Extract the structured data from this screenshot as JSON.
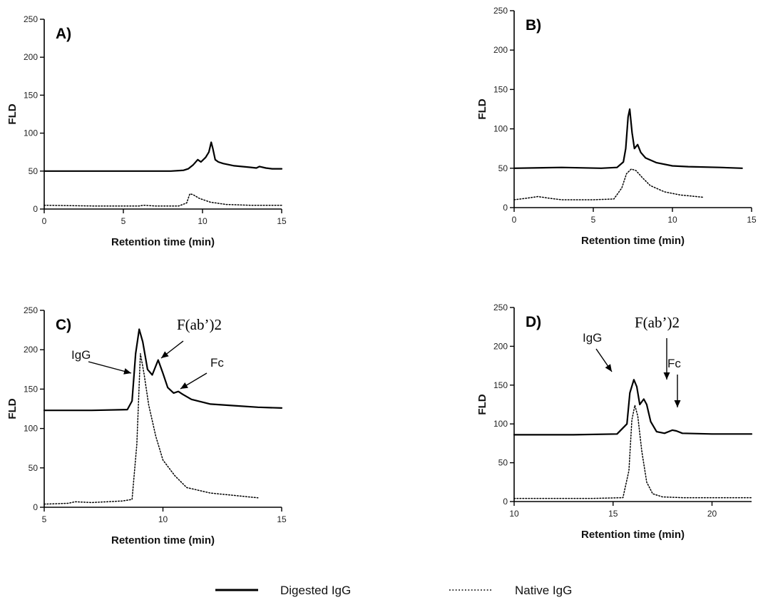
{
  "chart_data": [
    {
      "type": "line",
      "panel_label": "A)",
      "xlabel": "Retention time (min)",
      "ylabel": "FLD",
      "xlim": [
        0,
        15
      ],
      "ylim": [
        0,
        250
      ],
      "xticks": [
        0,
        5,
        10,
        15
      ],
      "yticks": [
        0,
        50,
        100,
        150,
        200,
        250
      ],
      "annotations": [],
      "series": [
        {
          "name": "Digested IgG",
          "style": "solid",
          "x": [
            0,
            3,
            6,
            8,
            8.8,
            9.1,
            9.4,
            9.7,
            9.9,
            10.2,
            10.4,
            10.55,
            10.65,
            10.8,
            11,
            11.3,
            12,
            13,
            13.4,
            13.6,
            14,
            14.4,
            15
          ],
          "y": [
            50,
            50,
            50,
            50,
            51,
            53,
            58,
            65,
            62,
            68,
            75,
            88,
            80,
            65,
            62,
            60,
            57,
            55,
            54,
            56,
            54,
            53,
            53
          ]
        },
        {
          "name": "Native IgG",
          "style": "dotted",
          "x": [
            0,
            3,
            6,
            6.3,
            7,
            8.5,
            9,
            9.2,
            9.4,
            9.8,
            10.5,
            11.5,
            13,
            15
          ],
          "y": [
            5,
            4,
            4,
            5,
            4,
            4,
            8,
            20,
            19,
            14,
            9,
            6,
            5,
            5
          ]
        }
      ]
    },
    {
      "type": "line",
      "panel_label": "B)",
      "xlabel": "Retention time (min)",
      "ylabel": "FLD",
      "xlim": [
        0,
        15
      ],
      "ylim": [
        0,
        250
      ],
      "xticks": [
        0,
        5,
        10,
        15
      ],
      "yticks": [
        0,
        50,
        100,
        150,
        200,
        250
      ],
      "annotations": [],
      "series": [
        {
          "name": "Digested IgG",
          "style": "solid",
          "x": [
            0,
            3,
            5.5,
            6.5,
            6.9,
            7.05,
            7.2,
            7.3,
            7.45,
            7.6,
            7.8,
            8.0,
            8.3,
            9,
            10,
            11,
            13,
            14.4
          ],
          "y": [
            50,
            51,
            50,
            51,
            58,
            75,
            115,
            125,
            95,
            75,
            80,
            70,
            63,
            57,
            53,
            52,
            51,
            50
          ]
        },
        {
          "name": "Native IgG",
          "style": "dotted",
          "x": [
            0,
            0.8,
            1.5,
            2.2,
            3,
            5,
            6.3,
            6.8,
            7.1,
            7.4,
            7.7,
            8.1,
            8.6,
            9.5,
            10.5,
            12
          ],
          "y": [
            10,
            12,
            14,
            12,
            10,
            10,
            11,
            25,
            43,
            49,
            47,
            38,
            28,
            20,
            16,
            13
          ]
        }
      ]
    },
    {
      "type": "line",
      "panel_label": "C)",
      "xlabel": "Retention time (min)",
      "ylabel": "FLD",
      "xlim": [
        5,
        15
      ],
      "ylim": [
        0,
        250
      ],
      "xticks": [
        5,
        10,
        15
      ],
      "yticks": [
        0,
        50,
        100,
        150,
        200,
        250
      ],
      "annotations": [
        "IgG",
        "F(ab’)2",
        "Fc"
      ],
      "series": [
        {
          "name": "Digested IgG",
          "style": "solid",
          "x": [
            5,
            7,
            8.5,
            8.7,
            8.85,
            9.0,
            9.15,
            9.35,
            9.55,
            9.8,
            10.0,
            10.2,
            10.45,
            10.65,
            10.85,
            11.2,
            12,
            13,
            14,
            15
          ],
          "y": [
            123,
            123,
            124,
            135,
            195,
            226,
            210,
            175,
            168,
            187,
            170,
            152,
            145,
            147,
            143,
            137,
            131,
            129,
            127,
            126
          ]
        },
        {
          "name": "Native IgG",
          "style": "dotted",
          "x": [
            5,
            6,
            6.3,
            7,
            8.3,
            8.7,
            8.9,
            9.05,
            9.2,
            9.4,
            9.7,
            10,
            10.5,
            11,
            12,
            13,
            14
          ],
          "y": [
            4,
            5,
            7,
            6,
            8,
            10,
            80,
            195,
            170,
            130,
            90,
            60,
            40,
            25,
            18,
            15,
            12
          ]
        }
      ]
    },
    {
      "type": "line",
      "panel_label": "D)",
      "xlabel": "Retention time (min)",
      "ylabel": "FLD",
      "xlim": [
        10,
        22
      ],
      "ylim": [
        0,
        250
      ],
      "xticks": [
        10,
        15,
        20
      ],
      "yticks": [
        0,
        50,
        100,
        150,
        200,
        250
      ],
      "annotations": [
        "IgG",
        "F(ab’)2",
        "Fc"
      ],
      "series": [
        {
          "name": "Digested IgG",
          "style": "solid",
          "x": [
            10,
            13,
            15.2,
            15.7,
            15.85,
            16.05,
            16.2,
            16.35,
            16.55,
            16.7,
            16.9,
            17.2,
            17.6,
            18,
            18.2,
            18.5,
            20,
            22
          ],
          "y": [
            86,
            86,
            87,
            100,
            140,
            157,
            148,
            125,
            132,
            125,
            103,
            90,
            88,
            92,
            91,
            88,
            87,
            87
          ]
        },
        {
          "name": "Native IgG",
          "style": "dotted",
          "x": [
            10,
            14,
            15.5,
            15.8,
            15.95,
            16.1,
            16.25,
            16.45,
            16.7,
            17,
            17.5,
            18.5,
            20,
            22
          ],
          "y": [
            4,
            4,
            5,
            40,
            105,
            124,
            110,
            65,
            25,
            10,
            6,
            5,
            5,
            5
          ]
        }
      ]
    }
  ],
  "legend": {
    "digested_label": "Digested IgG",
    "native_label": "Native IgG"
  }
}
